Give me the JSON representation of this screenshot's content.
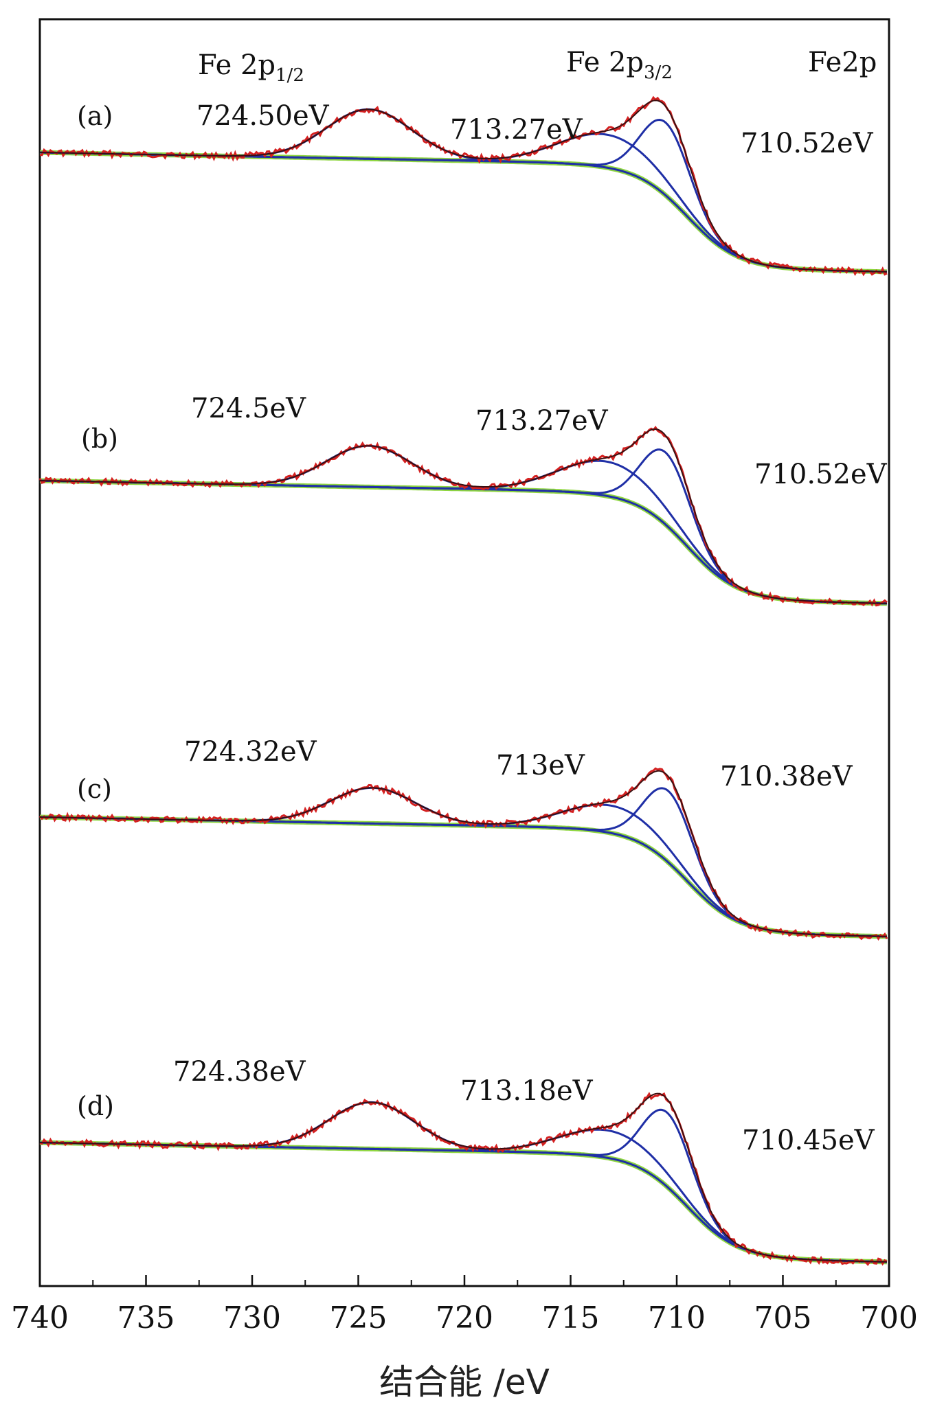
{
  "chart_data": {
    "type": "line",
    "xlabel": "结合能 /eV",
    "ylabel": "",
    "xlim": [
      740,
      700
    ],
    "x_reversed": true,
    "xticks": [
      "740",
      "735",
      "730",
      "725",
      "720",
      "715",
      "710",
      "705",
      "700"
    ],
    "top_labels": {
      "p12": "Fe 2p",
      "p12_sub": "1/2",
      "p32": "Fe 2p",
      "p32_sub": "3/2",
      "element": "Fe2p"
    },
    "colors": {
      "raw": "#d42020",
      "background": "#8fd640",
      "fit": "#1f2fa6",
      "envelope": "#3a0f10"
    },
    "panels": [
      {
        "label": "(a)",
        "peaks": [
          {
            "center": 724.5,
            "label": "724.50eV"
          },
          {
            "center": 713.27,
            "label": "713.27eV"
          },
          {
            "center": 710.52,
            "label": "710.52eV"
          }
        ]
      },
      {
        "label": "(b)",
        "peaks": [
          {
            "center": 724.5,
            "label": "724.5eV"
          },
          {
            "center": 713.27,
            "label": "713.27eV"
          },
          {
            "center": 710.52,
            "label": "710.52eV"
          }
        ]
      },
      {
        "label": "(c)",
        "peaks": [
          {
            "center": 724.32,
            "label": "724.32eV"
          },
          {
            "center": 713,
            "label": "713eV"
          },
          {
            "center": 710.38,
            "label": "710.38eV"
          }
        ]
      },
      {
        "label": "(d)",
        "peaks": [
          {
            "center": 724.38,
            "label": "724.38eV"
          },
          {
            "center": 713.18,
            "label": "713.18eV"
          },
          {
            "center": 710.45,
            "label": "710.45eV"
          }
        ]
      }
    ]
  }
}
